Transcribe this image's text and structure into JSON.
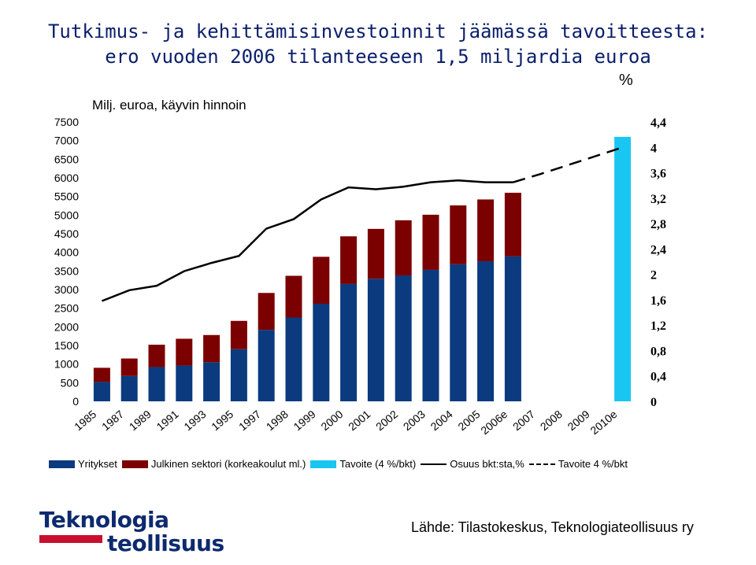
{
  "title_line1": "Tutkimus- ja kehittämisinvestoinnit jäämässä tavoitteesta:",
  "title_line2": "ero vuoden 2006 tilanteeseen 1,5 miljardia euroa",
  "source": "Lähde: Tilastokeskus, Teknologiateollisuus ry",
  "logo": {
    "line1": "Teknologia",
    "line2": "teollisuus"
  },
  "colors": {
    "yritykset": "#0b3a7e",
    "julkinen": "#7b0000",
    "tavoite_bar": "#19c6f2",
    "line": "#000000",
    "title": "#0a1f6b"
  },
  "chart_data": {
    "type": "bar",
    "stacked": true,
    "left_axis_label": "Milj. euroa, käyvin hinnoin",
    "right_axis_label": "%",
    "ylim_left": [
      0,
      7500
    ],
    "yticks_left": [
      "0",
      "500",
      "1000",
      "1500",
      "2000",
      "2500",
      "3000",
      "3500",
      "4000",
      "4500",
      "5000",
      "5500",
      "6000",
      "6500",
      "7000",
      "7500"
    ],
    "ylim_right": [
      0,
      4.4
    ],
    "yticks_right": [
      "0",
      "0,4",
      "0,8",
      "1,2",
      "1,6",
      "2",
      "2,4",
      "2,8",
      "3,2",
      "3,6",
      "4",
      "4,4"
    ],
    "categories": [
      "1985",
      "1987",
      "1989",
      "1991",
      "1993",
      "1995",
      "1997",
      "1998",
      "1999",
      "2000",
      "2001",
      "2002",
      "2003",
      "2004",
      "2005",
      "2006e",
      "2007",
      "2008",
      "2009",
      "2010e"
    ],
    "series": [
      {
        "name": "Yritykset",
        "kind": "bar",
        "values": [
          520,
          680,
          920,
          960,
          1050,
          1400,
          1920,
          2250,
          2620,
          3150,
          3290,
          3380,
          3530,
          3680,
          3760,
          3890,
          null,
          null,
          null,
          null
        ]
      },
      {
        "name": "Julkinen sektori (korkeakoulut ml.)",
        "kind": "bar",
        "values": [
          380,
          470,
          600,
          720,
          730,
          760,
          990,
          1120,
          1260,
          1280,
          1340,
          1480,
          1480,
          1580,
          1660,
          1710,
          null,
          null,
          null,
          null
        ]
      },
      {
        "name": "Tavoite (4 %/bkt)",
        "kind": "bar",
        "values": [
          null,
          null,
          null,
          null,
          null,
          null,
          null,
          null,
          null,
          null,
          null,
          null,
          null,
          null,
          null,
          null,
          null,
          null,
          null,
          7100
        ]
      },
      {
        "name": "Osuus bkt:sta,%",
        "kind": "line",
        "axis": "right",
        "values": [
          1.58,
          1.75,
          1.82,
          2.05,
          2.18,
          2.29,
          2.72,
          2.87,
          3.18,
          3.37,
          3.34,
          3.38,
          3.45,
          3.48,
          3.45,
          3.45,
          null,
          null,
          null,
          null
        ]
      },
      {
        "name": "Tavoite 4 %/bkt",
        "kind": "dashed-line",
        "axis": "right",
        "values": [
          null,
          null,
          null,
          null,
          null,
          null,
          null,
          null,
          null,
          null,
          null,
          null,
          null,
          null,
          null,
          3.45,
          3.58,
          3.72,
          3.86,
          4.0
        ]
      }
    ],
    "legend_position": "bottom"
  }
}
